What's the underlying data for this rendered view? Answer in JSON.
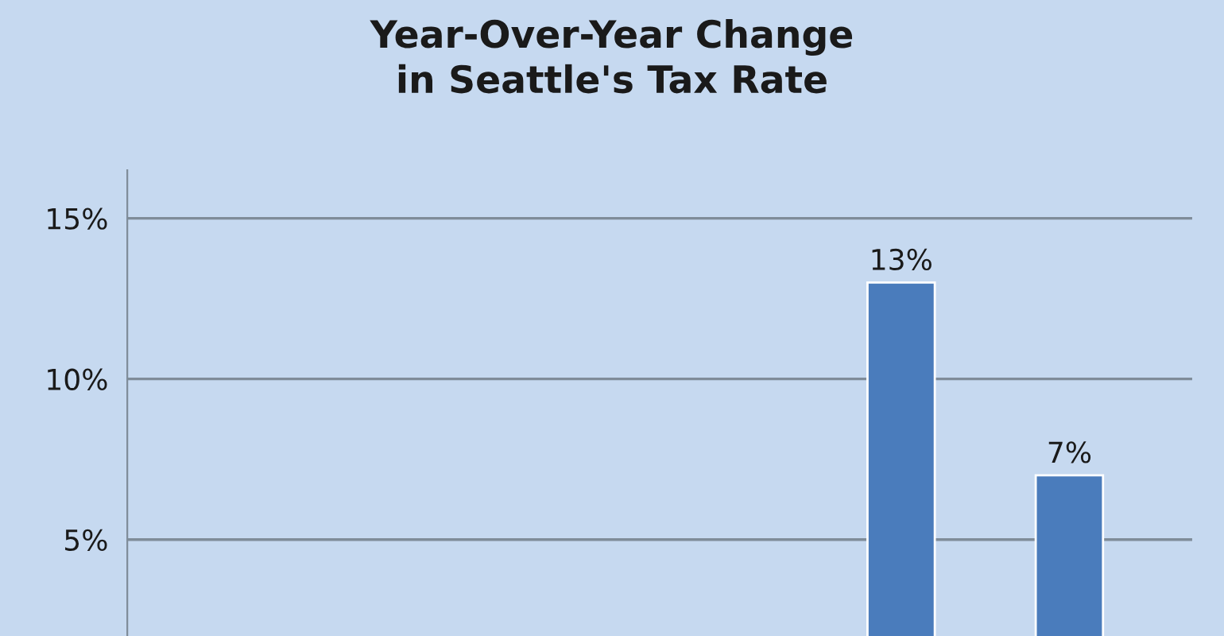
{
  "chart_data": {
    "type": "bar",
    "title": "Year-Over-Year Change\nin Seattle's Tax Rate",
    "categories": [
      null,
      null,
      null,
      null,
      null,
      null
    ],
    "values": [
      null,
      null,
      null,
      null,
      13,
      7
    ],
    "value_labels": [
      null,
      null,
      null,
      null,
      "13%",
      "7%"
    ],
    "color": "#4a7cbc",
    "ylim": [
      2,
      16.5
    ],
    "yticks": [
      {
        "value": 5,
        "label": "5%"
      },
      {
        "value": 10,
        "label": "10%"
      },
      {
        "value": 15,
        "label": "15%"
      }
    ],
    "grid": "y",
    "tick_labels": "y"
  }
}
